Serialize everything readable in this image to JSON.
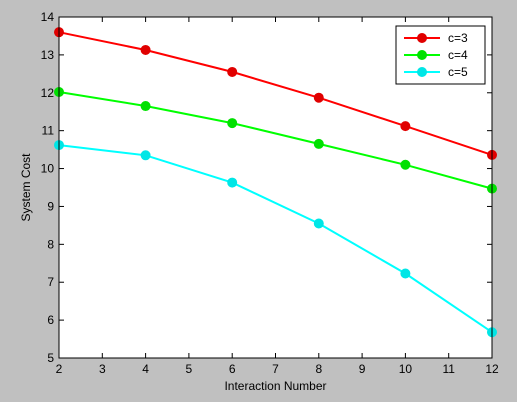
{
  "chart_data": {
    "type": "line",
    "title": "",
    "xlabel": "Interaction Number",
    "ylabel": "System Cost",
    "xlim": [
      2,
      12
    ],
    "ylim": [
      5,
      14
    ],
    "xticks": [
      2,
      3,
      4,
      5,
      6,
      7,
      8,
      9,
      10,
      11,
      12
    ],
    "yticks": [
      5,
      6,
      7,
      8,
      9,
      10,
      11,
      12,
      13,
      14
    ],
    "grid": false,
    "legend_position": "top-right",
    "x": [
      2,
      4,
      6,
      8,
      10,
      12
    ],
    "series": [
      {
        "name": "c=3",
        "color": "#ff0000",
        "marker_color": "#e00000",
        "values": [
          13.6,
          13.13,
          12.55,
          11.87,
          11.12,
          10.36
        ]
      },
      {
        "name": "c=4",
        "color": "#00ff00",
        "marker_color": "#00e000",
        "values": [
          12.02,
          11.65,
          11.2,
          10.65,
          10.1,
          9.47
        ]
      },
      {
        "name": "c=5",
        "color": "#00ffff",
        "marker_color": "#00e6e6",
        "values": [
          10.62,
          10.35,
          9.63,
          8.55,
          7.23,
          5.68
        ]
      }
    ]
  }
}
